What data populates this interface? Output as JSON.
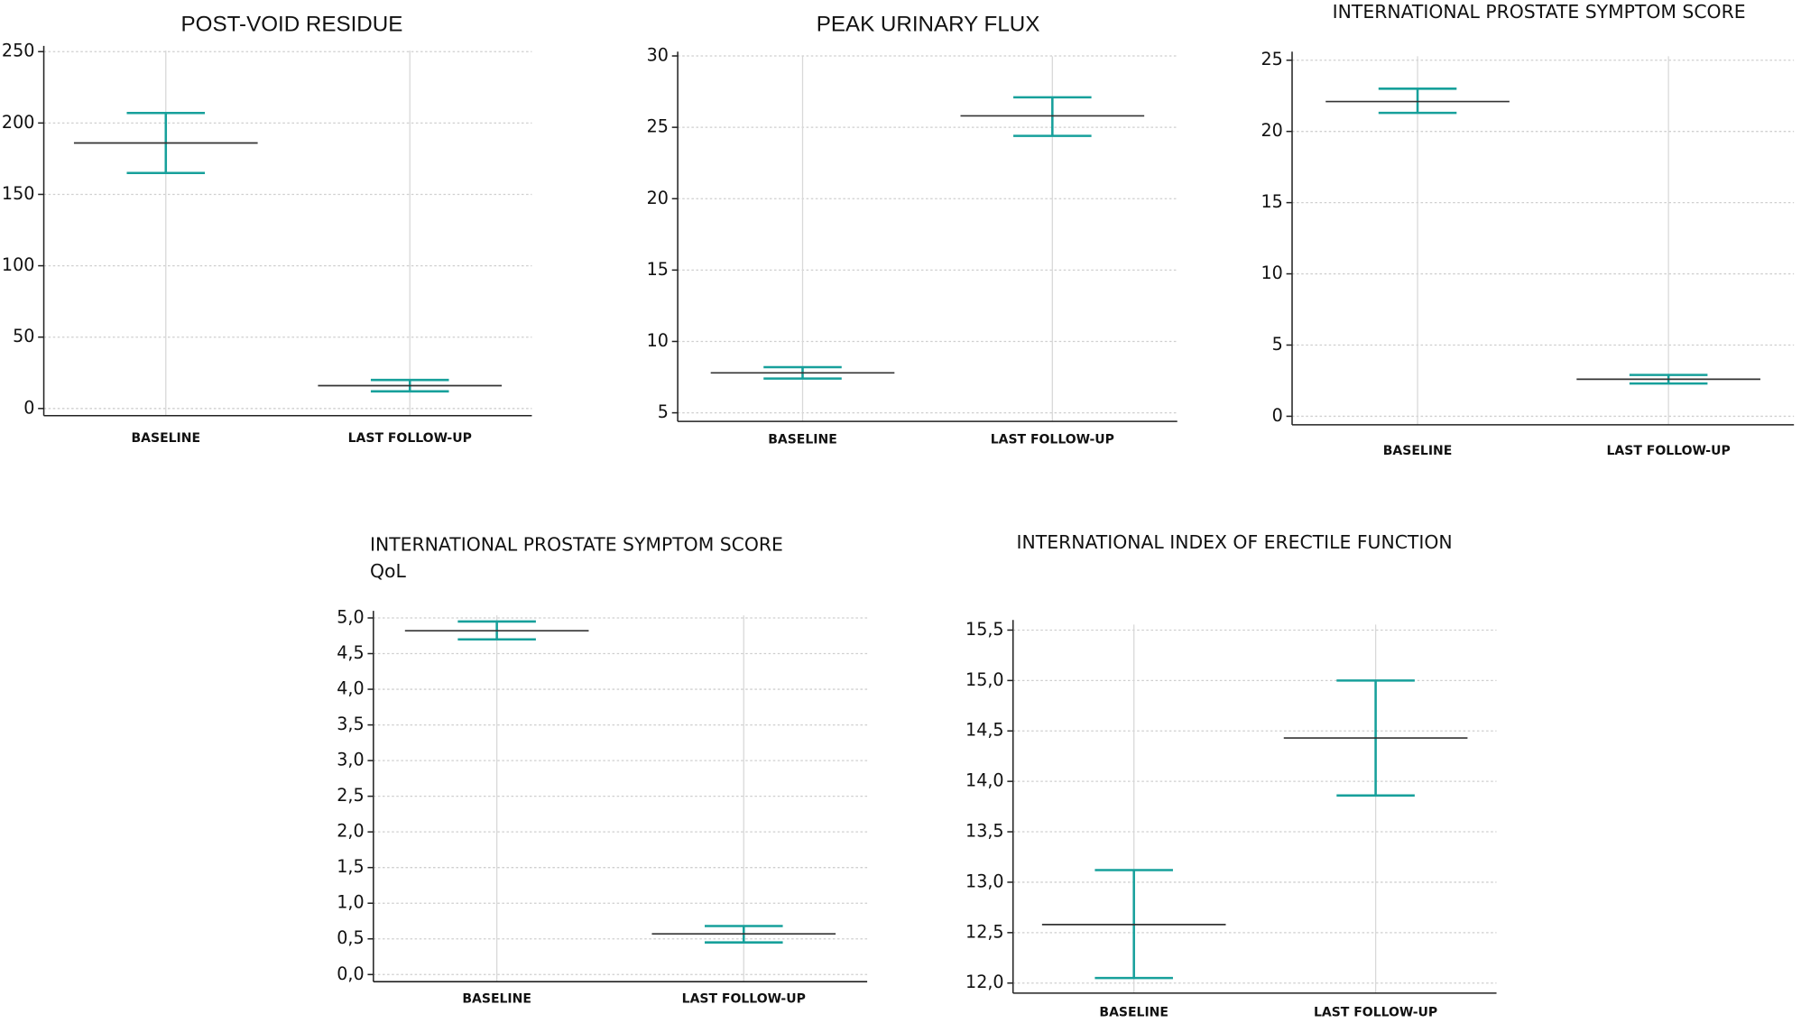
{
  "chart_data": [
    {
      "type": "errorbar",
      "title": "POST-VOID RESIDUE",
      "categories": [
        "BASELINE",
        "LAST FOLLOW-UP"
      ],
      "values": [
        186,
        16
      ],
      "lower": [
        165,
        12
      ],
      "upper": [
        207,
        20
      ],
      "color": "#17a09b",
      "mean_color": "#333333",
      "ylim": [
        -5,
        254
      ],
      "yticks": [
        0,
        50,
        100,
        150,
        200,
        250
      ],
      "grid": true
    },
    {
      "type": "errorbar",
      "title": "PEAK URINARY FLUX",
      "categories": [
        "BASELINE",
        "LAST FOLLOW-UP"
      ],
      "values": [
        7.8,
        25.8
      ],
      "lower": [
        7.4,
        24.4
      ],
      "upper": [
        8.2,
        27.1
      ],
      "color": "#17a09b",
      "mean_color": "#333333",
      "ylim": [
        4.4,
        30.3
      ],
      "yticks": [
        5,
        10,
        15,
        20,
        25,
        30
      ],
      "grid": true
    },
    {
      "type": "errorbar",
      "title": "INTERNATIONAL PROSTATE SYMPTOM SCORE",
      "categories": [
        "BASELINE",
        "LAST FOLLOW-UP"
      ],
      "values": [
        22.1,
        2.6
      ],
      "lower": [
        21.3,
        2.3
      ],
      "upper": [
        23,
        2.9
      ],
      "color": "#17a09b",
      "mean_color": "#333333",
      "ylim": [
        -0.6,
        25.6
      ],
      "yticks": [
        0,
        5,
        10,
        15,
        20,
        25
      ],
      "grid": true
    },
    {
      "type": "errorbar",
      "title": "INTERNATIONAL PROSTATE SYMPTOM SCORE",
      "subtitle": "QoL",
      "categories": [
        "BASELINE",
        "LAST FOLLOW-UP"
      ],
      "values": [
        4.82,
        0.57
      ],
      "lower": [
        4.7,
        0.45
      ],
      "upper": [
        4.95,
        0.68
      ],
      "color": "#17a09b",
      "mean_color": "#333333",
      "ylim": [
        -0.1,
        5.1
      ],
      "yticks": [
        {
          "value": 0,
          "label": "0,0"
        },
        {
          "value": 0.5,
          "label": "0,5"
        },
        {
          "value": 1,
          "label": "1,0"
        },
        {
          "value": 1.5,
          "label": "1,5"
        },
        {
          "value": 2,
          "label": "2,0"
        },
        {
          "value": 2.5,
          "label": "2,5"
        },
        {
          "value": 3,
          "label": "3,0"
        },
        {
          "value": 3.5,
          "label": "3,5"
        },
        {
          "value": 4,
          "label": "4,0"
        },
        {
          "value": 4.5,
          "label": "4,5"
        },
        {
          "value": 5,
          "label": "5,0"
        }
      ],
      "grid": true
    },
    {
      "type": "errorbar",
      "title": "INTERNATIONAL INDEX OF ERECTILE FUNCTION",
      "categories": [
        "BASELINE",
        "LAST FOLLOW-UP"
      ],
      "values": [
        12.58,
        14.43
      ],
      "lower": [
        12.05,
        13.86
      ],
      "upper": [
        13.12,
        15.0
      ],
      "color": "#17a09b",
      "mean_color": "#333333",
      "ylim": [
        11.9,
        15.6
      ],
      "yticks": [
        {
          "value": 12,
          "label": "12,0"
        },
        {
          "value": 12.5,
          "label": "12,5"
        },
        {
          "value": 13,
          "label": "13,0"
        },
        {
          "value": 13.5,
          "label": "13,5"
        },
        {
          "value": 14,
          "label": "14,0"
        },
        {
          "value": 14.5,
          "label": "14,5"
        },
        {
          "value": 15,
          "label": "15,0"
        },
        {
          "value": 15.5,
          "label": "15,5"
        }
      ],
      "grid": true
    }
  ]
}
